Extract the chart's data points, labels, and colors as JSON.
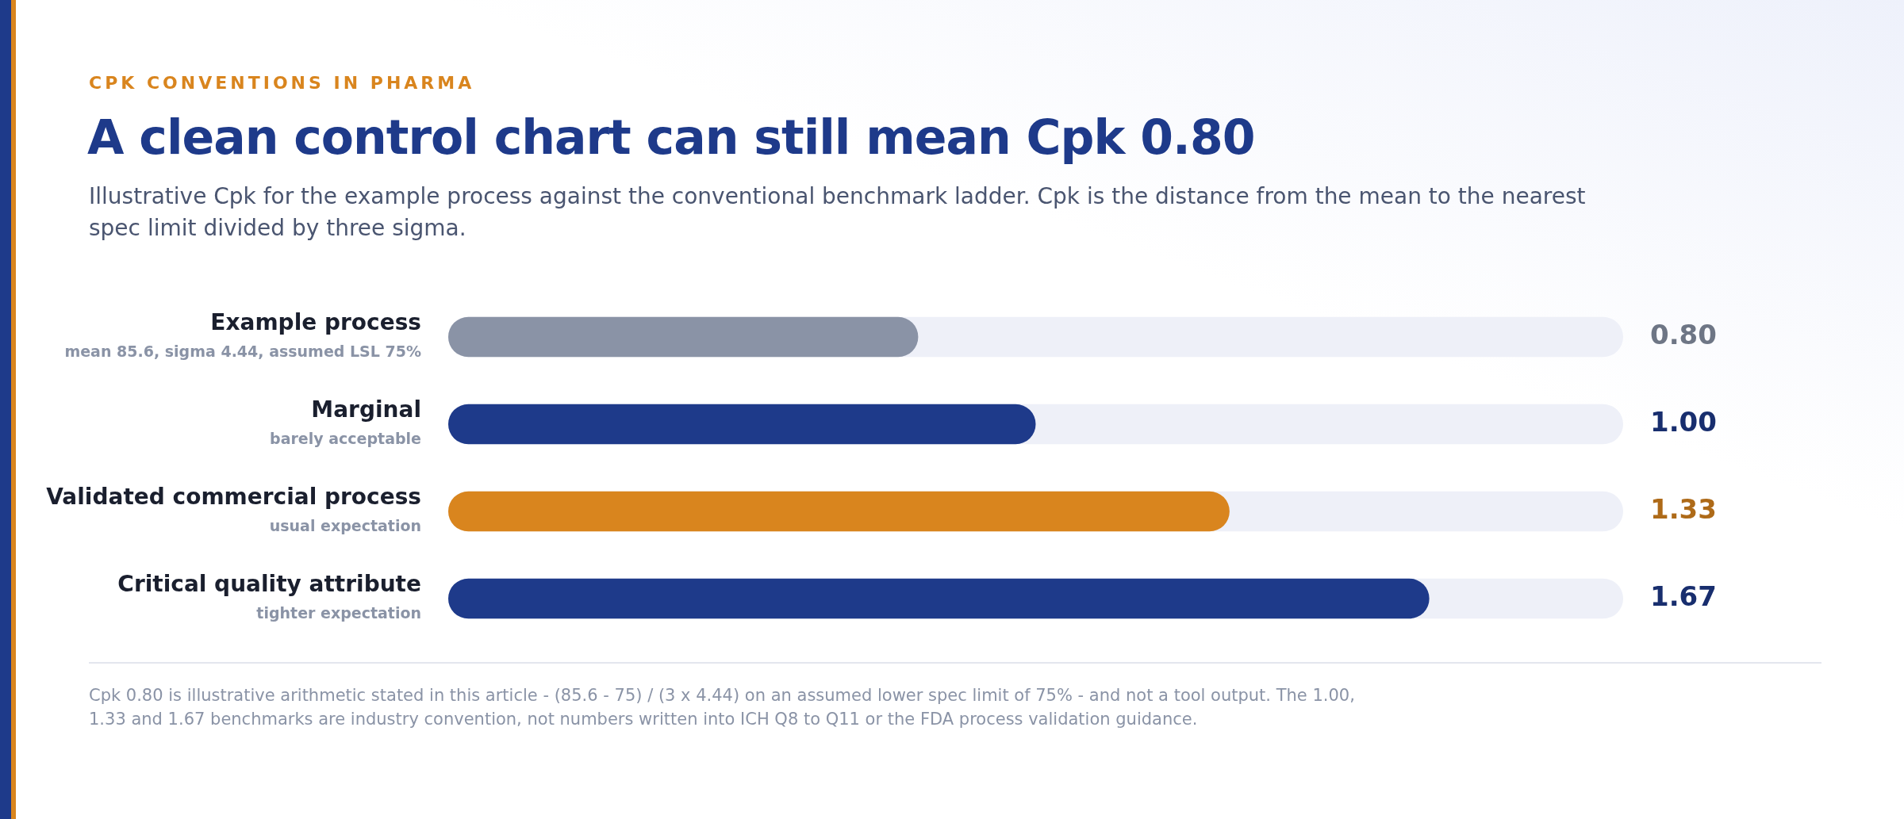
{
  "chart_data": {
    "type": "bar",
    "orientation": "horizontal",
    "title": "A clean control chart can still mean Cpk 0.80",
    "subtitle": "Illustrative Cpk for the example process against the conventional benchmark ladder. Cpk is the distance from the mean to the nearest spec limit divided by three sigma.",
    "legend_title": "CPK CONVENTIONS IN PHARMA",
    "categories": [
      "Example process\nmean 85.6, sigma 4.44, assumed LSL 75%",
      "Marginal\nbarely acceptable",
      "Validated commercial process\nusual expectation",
      "Critical quality attribute\ntighter expectation"
    ],
    "values": [
      0.8,
      1.0,
      1.33,
      1.67
    ],
    "value_labels": [
      "0.80",
      "1.00",
      "1.33",
      "1.67"
    ],
    "colors": [
      "#8a93a6",
      "#1e3a8a",
      "#d9851e",
      "#1e3a8a"
    ],
    "xlim": [
      0,
      2
    ],
    "legend": false,
    "annotations": [
      "Cpk 0.80 is illustrative arithmetic stated in this article - (85.6 - 75) / (3 x 4.44) on an assumed lower spec limit of 75% - and not a tool output. The 1.00, 1.33 and 1.67 benchmarks are industry convention, not numbers written into ICH Q8 to Q11 or the FDA process validation guidance."
    ]
  }
}
